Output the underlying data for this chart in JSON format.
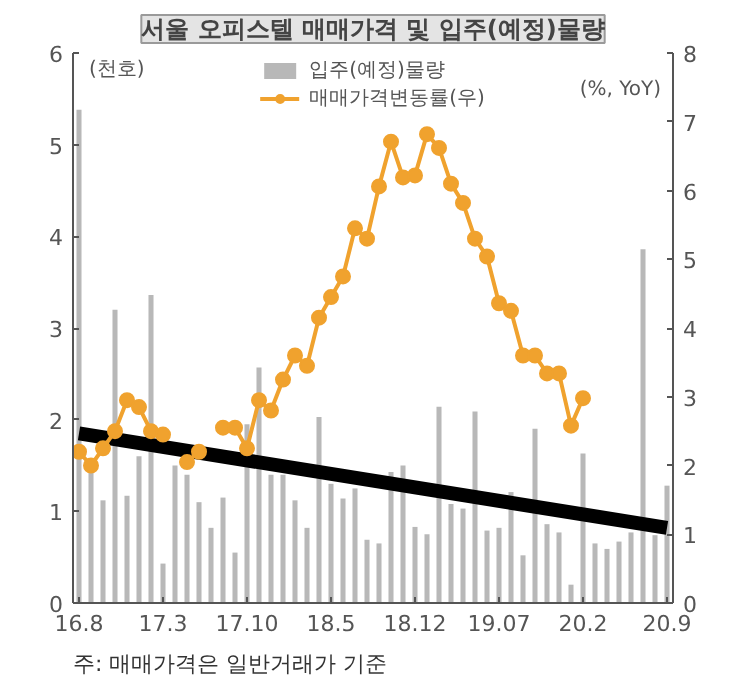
{
  "chart_data": {
    "type": "bar",
    "title": "서울 오피스텔 매매가격 및 입주(예정)물량",
    "ylabel": "(천호)",
    "y2label": "(%, YoY)",
    "annotations": [
      "주: 매매가격은 일반거래가 기준"
    ],
    "categories": [
      "16.8",
      null,
      null,
      null,
      null,
      null,
      null,
      "17.3",
      null,
      null,
      null,
      null,
      null,
      null,
      "17.10",
      null,
      null,
      null,
      null,
      null,
      null,
      "18.5",
      null,
      null,
      null,
      null,
      null,
      null,
      "18.12",
      null,
      null,
      null,
      null,
      null,
      null,
      "19.07",
      null,
      null,
      null,
      null,
      null,
      null,
      "20.2",
      null,
      null,
      null,
      null,
      null,
      null,
      "20.9"
    ],
    "series": [
      {
        "name": "입주(예정)물량",
        "color": "#b8b8b8",
        "values": [
          5.38,
          1.45,
          1.12,
          3.2,
          1.17,
          1.6,
          3.36,
          0.43,
          1.5,
          1.4,
          1.1,
          0.82,
          1.15,
          0.55,
          1.95,
          2.57,
          1.4,
          1.4,
          1.12,
          0.82,
          2.03,
          1.3,
          1.14,
          1.25,
          0.69,
          0.65,
          1.43,
          1.5,
          0.83,
          0.75,
          2.14,
          1.08,
          1.03,
          2.09,
          0.79,
          0.82,
          1.21,
          0.52,
          1.9,
          0.86,
          0.77,
          0.2,
          1.63,
          0.65,
          0.59,
          0.67,
          0.77,
          3.86,
          0.74,
          1.28
        ]
      },
      {
        "type": "line",
        "color": "#000000",
        "marker": "none",
        "x": [
          "16.8",
          "20.9"
        ],
        "values": [
          1.85,
          0.82
        ]
      },
      {
        "name": "매매가격변동률(우)",
        "type": "line",
        "axis": "y2",
        "color": "#f0a22e",
        "marker": "circle",
        "values": [
          2.2,
          2.0,
          2.25,
          2.5,
          2.95,
          2.85,
          2.5,
          2.45,
          null,
          2.05,
          2.2,
          null,
          2.55,
          2.55,
          2.25,
          2.95,
          2.8,
          3.25,
          3.6,
          3.45,
          4.15,
          4.45,
          4.75,
          5.45,
          5.3,
          6.06,
          6.71,
          6.19,
          6.22,
          6.82,
          6.62,
          6.1,
          5.82,
          5.3,
          5.04,
          4.36,
          4.25,
          3.6,
          3.6,
          3.34,
          3.34,
          2.58,
          2.98,
          null,
          null,
          null,
          null,
          null,
          null,
          null
        ]
      }
    ],
    "ylim": [
      0,
      6
    ],
    "yticks": [
      0,
      1,
      2,
      3,
      4,
      5,
      6
    ],
    "y2lim": [
      0,
      8
    ],
    "y2ticks": [
      0,
      1,
      2,
      3,
      4,
      5,
      6,
      7,
      8
    ],
    "grid": false,
    "legend": "top"
  }
}
